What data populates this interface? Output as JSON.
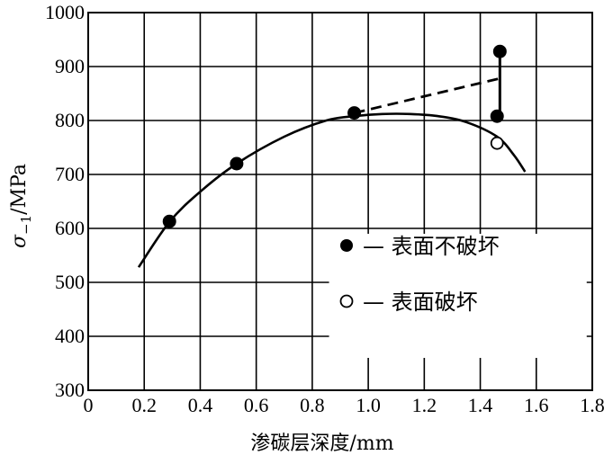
{
  "chart_data": {
    "type": "scatter",
    "xlabel": "渗碳层深度/mm",
    "ylabel_symbol": "σ",
    "ylabel_subscript": "−1",
    "ylabel_unit": "/MPa",
    "xlim": [
      0,
      1.8
    ],
    "ylim": [
      300,
      1000
    ],
    "x_ticks": [
      "0",
      "0.2",
      "0.4",
      "0.6",
      "0.8",
      "1.0",
      "1.2",
      "1.4",
      "1.6",
      "1.8"
    ],
    "y_ticks": [
      "300",
      "400",
      "500",
      "600",
      "700",
      "800",
      "900",
      "1000"
    ],
    "grid": true,
    "legend_position": "lower-right",
    "series": [
      {
        "name": "表面不破坏",
        "marker": "filled-circle",
        "points": [
          {
            "x": 0.29,
            "y": 613
          },
          {
            "x": 0.53,
            "y": 720
          },
          {
            "x": 0.95,
            "y": 814
          },
          {
            "x": 1.46,
            "y": 808
          },
          {
            "x": 1.47,
            "y": 928
          }
        ]
      },
      {
        "name": "表面破坏",
        "marker": "open-circle",
        "points": [
          {
            "x": 1.46,
            "y": 758
          }
        ]
      }
    ],
    "curve": [
      {
        "x": 0.18,
        "y": 528
      },
      {
        "x": 0.29,
        "y": 612
      },
      {
        "x": 0.4,
        "y": 668
      },
      {
        "x": 0.53,
        "y": 720
      },
      {
        "x": 0.7,
        "y": 770
      },
      {
        "x": 0.85,
        "y": 800
      },
      {
        "x": 0.95,
        "y": 808
      },
      {
        "x": 1.05,
        "y": 812
      },
      {
        "x": 1.15,
        "y": 812
      },
      {
        "x": 1.25,
        "y": 808
      },
      {
        "x": 1.35,
        "y": 797
      },
      {
        "x": 1.46,
        "y": 770
      },
      {
        "x": 1.52,
        "y": 736
      },
      {
        "x": 1.56,
        "y": 705
      }
    ],
    "dashed_line": [
      {
        "x": 0.95,
        "y": 814
      },
      {
        "x": 1.47,
        "y": 878
      }
    ],
    "vertical_bar": {
      "x": 1.47,
      "y_from": 808,
      "y_to": 928
    }
  }
}
